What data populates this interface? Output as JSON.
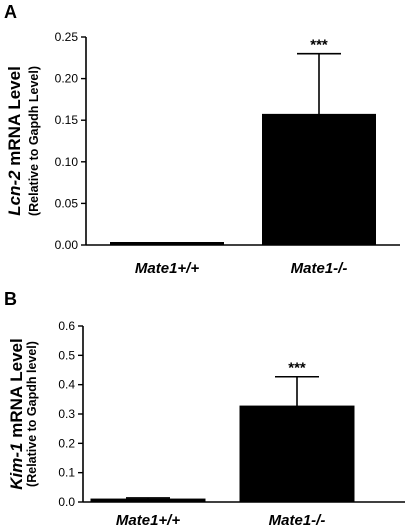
{
  "chart_data": [
    {
      "panel": "A",
      "type": "bar",
      "categories": [
        "Mate1+/+",
        "Mate1-/-"
      ],
      "values": [
        0.003,
        0.157
      ],
      "errors": [
        0.001,
        0.073
      ],
      "ylabel": {
        "gene": "Lcn-2",
        "rest": " mRNA Level",
        "sub": "(Relative to Gapdh Level)"
      },
      "ylim": [
        0,
        0.25
      ],
      "yticks": [
        "0.00",
        "0.05",
        "0.10",
        "0.15",
        "0.20",
        "0.25"
      ],
      "annotations": [
        "",
        "***"
      ],
      "bar_color": "#000000",
      "grid": false
    },
    {
      "panel": "B",
      "type": "bar",
      "categories": [
        "Mate1+/+",
        "Mate1-/-"
      ],
      "values": [
        0.01,
        0.327
      ],
      "errors": [
        0.004,
        0.1
      ],
      "ylabel": {
        "gene": "Kim-1",
        "rest": " mRNA Level",
        "sub": "(Relative to Gapdh level)"
      },
      "ylim": [
        0,
        0.6
      ],
      "yticks": [
        "0.0",
        "0.1",
        "0.2",
        "0.3",
        "0.4",
        "0.5",
        "0.6"
      ],
      "annotations": [
        "",
        "***"
      ],
      "bar_color": "#000000",
      "grid": false
    }
  ]
}
